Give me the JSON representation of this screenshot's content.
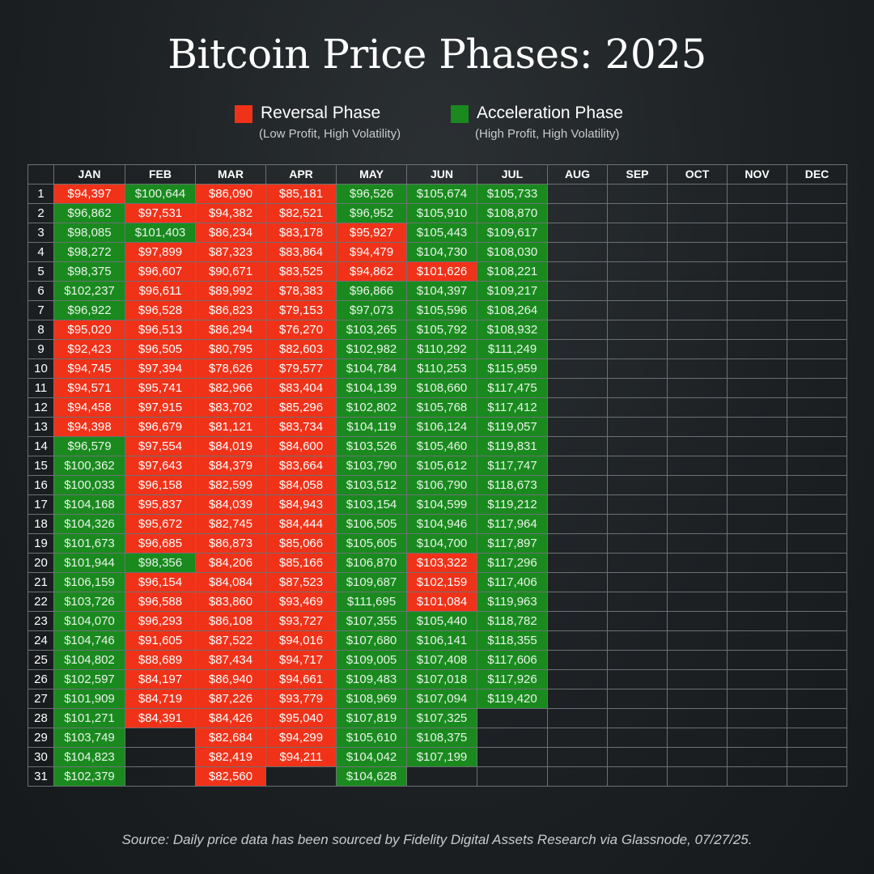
{
  "title": "Bitcoin Price Phases: 2025",
  "legend": [
    {
      "label": "Reversal Phase",
      "sub": "(Low Profit, High Volatility)",
      "color": "#f03219"
    },
    {
      "label": "Acceleration Phase",
      "sub": "(High Profit, High Volatility)",
      "color": "#1a8a1f"
    }
  ],
  "source": "Source: Daily price data has been sourced by Fidelity Digital Assets Research via Glassnode, 07/27/25.",
  "chart_data": {
    "type": "table",
    "title": "Bitcoin Price Phases: 2025",
    "months": [
      "JAN",
      "FEB",
      "MAR",
      "APR",
      "MAY",
      "JUN",
      "JUL",
      "AUG",
      "SEP",
      "OCT",
      "NOV",
      "DEC"
    ],
    "days": [
      "1",
      "2",
      "3",
      "4",
      "5",
      "6",
      "7",
      "8",
      "9",
      "10",
      "11",
      "12",
      "13",
      "14",
      "15",
      "16",
      "17",
      "18",
      "19",
      "20",
      "21",
      "22",
      "23",
      "24",
      "25",
      "26",
      "27",
      "28",
      "29",
      "30",
      "31"
    ],
    "columns": [
      {
        "month": "JAN",
        "prices": [
          "$94,397",
          "$96,862",
          "$98,085",
          "$98,272",
          "$98,375",
          "$102,237",
          "$96,922",
          "$95,020",
          "$92,423",
          "$94,745",
          "$94,571",
          "$94,458",
          "$94,398",
          "$96,579",
          "$100,362",
          "$100,033",
          "$104,168",
          "$104,326",
          "$101,673",
          "$101,944",
          "$106,159",
          "$103,726",
          "$104,070",
          "$104,746",
          "$104,802",
          "$102,597",
          "$101,909",
          "$101,271",
          "$103,749",
          "$104,823",
          "$102,379"
        ],
        "phases": [
          "R",
          "A",
          "A",
          "A",
          "A",
          "A",
          "A",
          "R",
          "R",
          "R",
          "R",
          "R",
          "R",
          "A",
          "A",
          "A",
          "A",
          "A",
          "A",
          "A",
          "A",
          "A",
          "A",
          "A",
          "A",
          "A",
          "A",
          "A",
          "A",
          "A",
          "A"
        ]
      },
      {
        "month": "FEB",
        "prices": [
          "$100,644",
          "$97,531",
          "$101,403",
          "$97,899",
          "$96,607",
          "$96,611",
          "$96,528",
          "$96,513",
          "$96,505",
          "$97,394",
          "$95,741",
          "$97,915",
          "$96,679",
          "$97,554",
          "$97,643",
          "$96,158",
          "$95,837",
          "$95,672",
          "$96,685",
          "$98,356",
          "$96,154",
          "$96,588",
          "$96,293",
          "$91,605",
          "$88,689",
          "$84,197",
          "$84,719",
          "$84,391"
        ],
        "phases": [
          "A",
          "R",
          "A",
          "R",
          "R",
          "R",
          "R",
          "R",
          "R",
          "R",
          "R",
          "R",
          "R",
          "R",
          "R",
          "R",
          "R",
          "R",
          "R",
          "A",
          "R",
          "R",
          "R",
          "R",
          "R",
          "R",
          "R",
          "R"
        ]
      },
      {
        "month": "MAR",
        "prices": [
          "$86,090",
          "$94,382",
          "$86,234",
          "$87,323",
          "$90,671",
          "$89,992",
          "$86,823",
          "$86,294",
          "$80,795",
          "$78,626",
          "$82,966",
          "$83,702",
          "$81,121",
          "$84,019",
          "$84,379",
          "$82,599",
          "$84,039",
          "$82,745",
          "$86,873",
          "$84,206",
          "$84,084",
          "$83,860",
          "$86,108",
          "$87,522",
          "$87,434",
          "$86,940",
          "$87,226",
          "$84,426",
          "$82,684",
          "$82,419",
          "$82,560"
        ],
        "phases": [
          "R",
          "R",
          "R",
          "R",
          "R",
          "R",
          "R",
          "R",
          "R",
          "R",
          "R",
          "R",
          "R",
          "R",
          "R",
          "R",
          "R",
          "R",
          "R",
          "R",
          "R",
          "R",
          "R",
          "R",
          "R",
          "R",
          "R",
          "R",
          "R",
          "R",
          "R"
        ]
      },
      {
        "month": "APR",
        "prices": [
          "$85,181",
          "$82,521",
          "$83,178",
          "$83,864",
          "$83,525",
          "$78,383",
          "$79,153",
          "$76,270",
          "$82,603",
          "$79,577",
          "$83,404",
          "$85,296",
          "$83,734",
          "$84,600",
          "$83,664",
          "$84,058",
          "$84,943",
          "$84,444",
          "$85,066",
          "$85,166",
          "$87,523",
          "$93,469",
          "$93,727",
          "$94,016",
          "$94,717",
          "$94,661",
          "$93,779",
          "$95,040",
          "$94,299",
          "$94,211"
        ],
        "phases": [
          "R",
          "R",
          "R",
          "R",
          "R",
          "R",
          "R",
          "R",
          "R",
          "R",
          "R",
          "R",
          "R",
          "R",
          "R",
          "R",
          "R",
          "R",
          "R",
          "R",
          "R",
          "R",
          "R",
          "R",
          "R",
          "R",
          "R",
          "R",
          "R",
          "R"
        ]
      },
      {
        "month": "MAY",
        "prices": [
          "$96,526",
          "$96,952",
          "$95,927",
          "$94,479",
          "$94,862",
          "$96,866",
          "$97,073",
          "$103,265",
          "$102,982",
          "$104,784",
          "$104,139",
          "$102,802",
          "$104,119",
          "$103,526",
          "$103,790",
          "$103,512",
          "$103,154",
          "$106,505",
          "$105,605",
          "$106,870",
          "$109,687",
          "$111,695",
          "$107,355",
          "$107,680",
          "$109,005",
          "$109,483",
          "$108,969",
          "$107,819",
          "$105,610",
          "$104,042",
          "$104,628"
        ],
        "phases": [
          "A",
          "A",
          "R",
          "R",
          "R",
          "A",
          "A",
          "A",
          "A",
          "A",
          "A",
          "A",
          "A",
          "A",
          "A",
          "A",
          "A",
          "A",
          "A",
          "A",
          "A",
          "A",
          "A",
          "A",
          "A",
          "A",
          "A",
          "A",
          "A",
          "A",
          "A"
        ]
      },
      {
        "month": "JUN",
        "prices": [
          "$105,674",
          "$105,910",
          "$105,443",
          "$104,730",
          "$101,626",
          "$104,397",
          "$105,596",
          "$105,792",
          "$110,292",
          "$110,253",
          "$108,660",
          "$105,768",
          "$106,124",
          "$105,460",
          "$105,612",
          "$106,790",
          "$104,599",
          "$104,946",
          "$104,700",
          "$103,322",
          "$102,159",
          "$101,084",
          "$105,440",
          "$106,141",
          "$107,408",
          "$107,018",
          "$107,094",
          "$107,325",
          "$108,375",
          "$107,199"
        ],
        "phases": [
          "A",
          "A",
          "A",
          "A",
          "R",
          "A",
          "A",
          "A",
          "A",
          "A",
          "A",
          "A",
          "A",
          "A",
          "A",
          "A",
          "A",
          "A",
          "A",
          "R",
          "R",
          "R",
          "A",
          "A",
          "A",
          "A",
          "A",
          "A",
          "A",
          "A"
        ]
      },
      {
        "month": "JUL",
        "prices": [
          "$105,733",
          "$108,870",
          "$109,617",
          "$108,030",
          "$108,221",
          "$109,217",
          "$108,264",
          "$108,932",
          "$111,249",
          "$115,959",
          "$117,475",
          "$117,412",
          "$119,057",
          "$119,831",
          "$117,747",
          "$118,673",
          "$119,212",
          "$117,964",
          "$117,897",
          "$117,296",
          "$117,406",
          "$119,963",
          "$118,782",
          "$118,355",
          "$117,606",
          "$117,926",
          "$119,420"
        ],
        "phases": [
          "A",
          "A",
          "A",
          "A",
          "A",
          "A",
          "A",
          "A",
          "A",
          "A",
          "A",
          "A",
          "A",
          "A",
          "A",
          "A",
          "A",
          "A",
          "A",
          "A",
          "A",
          "A",
          "A",
          "A",
          "A",
          "A",
          "A"
        ]
      },
      {
        "month": "AUG",
        "prices": [],
        "phases": []
      },
      {
        "month": "SEP",
        "prices": [],
        "phases": []
      },
      {
        "month": "OCT",
        "prices": [],
        "phases": []
      },
      {
        "month": "NOV",
        "prices": [],
        "phases": []
      },
      {
        "month": "DEC",
        "prices": [],
        "phases": []
      }
    ]
  }
}
